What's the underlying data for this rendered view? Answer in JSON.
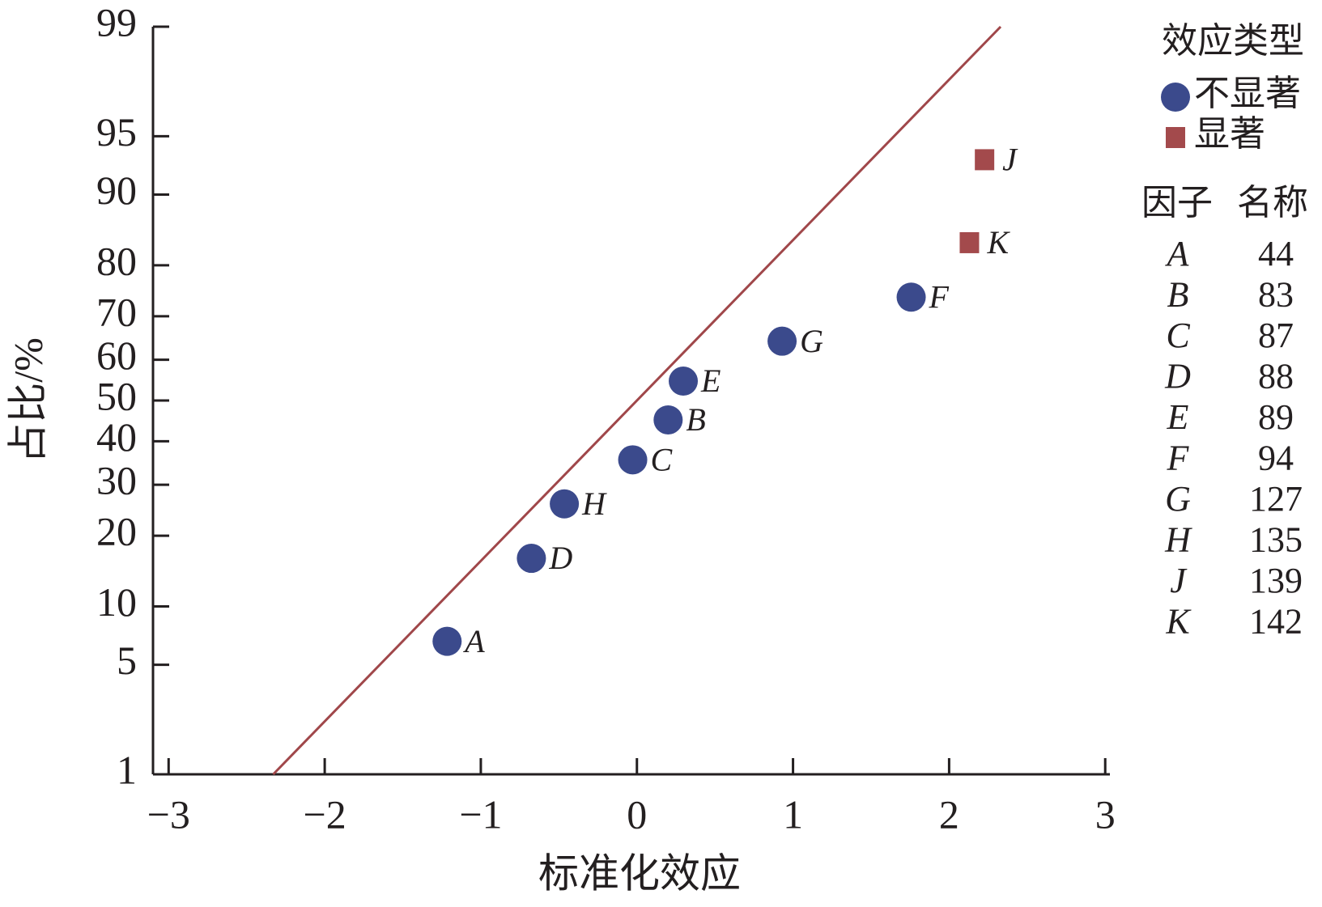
{
  "chart_data": {
    "type": "scatter",
    "yscale": "probability",
    "x_label": "标准化效应",
    "y_label": "占比/%",
    "xlim": [
      -3.1,
      3.03
    ],
    "ylim": [
      1,
      99
    ],
    "xticks": [
      {
        "value": -3,
        "label": "−3"
      },
      {
        "value": -2,
        "label": "−2"
      },
      {
        "value": -1,
        "label": "−1"
      },
      0,
      1,
      2,
      3
    ],
    "yticks": [
      1,
      5,
      10,
      20,
      30,
      40,
      50,
      60,
      70,
      80,
      90,
      95,
      99
    ],
    "reference_line": {
      "color": "#a0474a",
      "x": [
        -2.33,
        2.33
      ],
      "y": [
        1,
        99
      ]
    },
    "legend_title": "效应类型",
    "series": [
      {
        "name": "不显著",
        "color": "#3b4a8c",
        "marker": "circle",
        "labels": [
          "A",
          "D",
          "H",
          "C",
          "B",
          "E",
          "G",
          "F"
        ],
        "x": [
          -1.216,
          -0.676,
          -0.465,
          -0.027,
          0.2,
          0.297,
          0.93,
          1.757
        ],
        "values": [
          6.7,
          16.3,
          26.0,
          35.6,
          45.2,
          54.8,
          64.4,
          74.0
        ]
      },
      {
        "name": "显著",
        "color": "#a34a4c",
        "marker": "square",
        "labels": [
          "K",
          "J"
        ],
        "x": [
          2.13,
          2.227
        ],
        "values": [
          83.7,
          93.3
        ]
      }
    ],
    "factor_table": {
      "header": [
        "因子",
        "名称"
      ],
      "rows": [
        [
          "A",
          "44"
        ],
        [
          "B",
          "83"
        ],
        [
          "C",
          "87"
        ],
        [
          "D",
          "88"
        ],
        [
          "E",
          "89"
        ],
        [
          "F",
          "94"
        ],
        [
          "G",
          "127"
        ],
        [
          "H",
          "135"
        ],
        [
          "J",
          "139"
        ],
        [
          "K",
          "142"
        ]
      ]
    }
  }
}
